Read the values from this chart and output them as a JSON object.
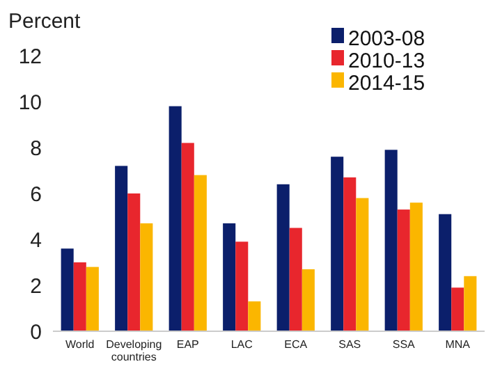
{
  "chart_data": {
    "type": "bar",
    "ylabel": "Percent",
    "categories": [
      "World",
      "Developing countries",
      "EAP",
      "LAC",
      "ECA",
      "SAS",
      "SSA",
      "MNA"
    ],
    "series": [
      {
        "name": "2003-08",
        "color": "#0b1f6b",
        "values": [
          3.6,
          7.2,
          9.8,
          4.7,
          6.4,
          7.6,
          7.9,
          5.1
        ]
      },
      {
        "name": "2010-13",
        "color": "#e8262d",
        "values": [
          3.0,
          6.0,
          8.2,
          3.9,
          4.5,
          6.7,
          5.3,
          1.9
        ]
      },
      {
        "name": "2014-15",
        "color": "#fbb600",
        "values": [
          2.8,
          4.7,
          6.8,
          1.3,
          2.7,
          5.8,
          5.6,
          2.4
        ]
      }
    ],
    "ylim": [
      0,
      12
    ],
    "yticks": [
      0,
      2,
      4,
      6,
      8,
      10,
      12
    ],
    "legend": "top right",
    "grid": false
  }
}
